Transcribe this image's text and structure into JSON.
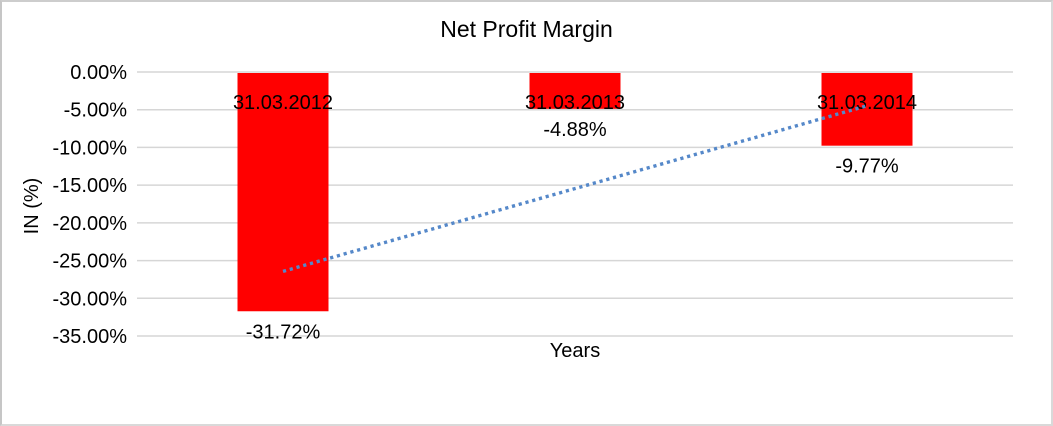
{
  "window": {
    "background": "#ffffff",
    "border_color": "#d0d0d0"
  },
  "chart_data": {
    "type": "bar",
    "title": "Net Profit Margin",
    "xlabel": "Years",
    "ylabel": "IN (%)",
    "categories": [
      "31.03.2012",
      "31.03.2013",
      "31.03.2014"
    ],
    "series": [
      {
        "name": "Net Profit Margin",
        "values": [
          -31.72,
          -4.88,
          -9.77
        ]
      }
    ],
    "data_labels": [
      "-31.72%",
      "-4.88%",
      "-9.77%"
    ],
    "y_ticks": [
      {
        "label": "0.00%",
        "value": 0
      },
      {
        "label": "-5.00%",
        "value": -5
      },
      {
        "label": "-10.00%",
        "value": -10
      },
      {
        "label": "-15.00%",
        "value": -15
      },
      {
        "label": "-20.00%",
        "value": -20
      },
      {
        "label": "-25.00%",
        "value": -25
      },
      {
        "label": "-30.00%",
        "value": -30
      },
      {
        "label": "-35.00%",
        "value": -35
      }
    ],
    "ylim": [
      -35,
      0
    ],
    "grid": true,
    "legend": "none",
    "trendline": {
      "type": "linear",
      "style": "dotted",
      "start_value": -26.43,
      "end_value": -4.48
    },
    "colors": {
      "bar": "#FF0000",
      "gridline": "#D6D6D6",
      "trendline": "#5588C9",
      "text": "#000000"
    }
  }
}
